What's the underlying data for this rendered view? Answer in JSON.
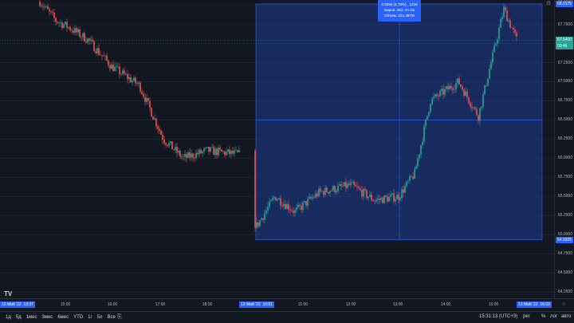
{
  "price_axis": {
    "ticks": [
      "68.0000",
      "67.7500",
      "67.5000",
      "67.2500",
      "67.0000",
      "66.7500",
      "66.5000",
      "66.2500",
      "66.0000",
      "65.7500",
      "65.5000",
      "65.2500",
      "65.0000",
      "64.7500",
      "64.5000",
      "64.2500"
    ],
    "top_label": "68.1503",
    "high_tag": "68.0175",
    "last_tag_price": "67.5400",
    "last_tag_time": "00:46",
    "low_tag": "64.9325"
  },
  "time_axis": {
    "ticks": [
      "15:00",
      "16:00",
      "17:00",
      "18:00",
      "11:00",
      "12:00",
      "13:00",
      "14:00",
      "15:00"
    ],
    "start_label": "12 Май '22",
    "start_time": "13:37",
    "range_start_label": "13 Май '22",
    "range_start_time": "10:01",
    "range_end_label": "13 Май '22",
    "range_end_time": "16:03"
  },
  "tooltip": {
    "line1": "3.0850 (4.75%) , 1234",
    "line2": "Баров: 362, 6ч 2м",
    "line3": "Объём: 231.487M"
  },
  "bottom_bar": {
    "ranges": [
      "1д",
      "5д",
      "1мес",
      "3мес",
      "6мес",
      "YTD",
      "1г",
      "5л",
      "Все"
    ],
    "clock": "15:31:13 (UTC+3)",
    "pct": "%",
    "log": "лог",
    "auto": "авто",
    "adj": "рег"
  },
  "logo": "TV",
  "colors": {
    "background": "#131722",
    "up": "#26a69a",
    "down": "#ef5350",
    "selection": "#2962ff",
    "axis_text": "#b2b5be"
  },
  "chart_data": {
    "type": "line",
    "x": [
      "12 Май 13:37",
      "14:30",
      "15:00",
      "15:30",
      "16:00",
      "16:30",
      "17:00",
      "17:30",
      "18:00",
      "18:30",
      "13 Май 10:01",
      "10:30",
      "11:00",
      "11:30",
      "12:00",
      "12:30",
      "13:00",
      "13:30",
      "14:00",
      "14:30",
      "15:00",
      "15:20",
      "15:31"
    ],
    "series": [
      {
        "values": [
          68.05,
          67.8,
          67.72,
          67.55,
          67.2,
          66.95,
          66.25,
          66.0,
          66.1,
          66.05,
          65.1,
          65.5,
          65.3,
          65.55,
          65.65,
          65.45,
          65.5,
          65.8,
          66.75,
          67.0,
          66.55,
          67.95,
          67.55
        ]
      }
    ],
    "ylim": [
      64.2,
      68.1
    ],
    "grid": true,
    "selection": {
      "from": "13 Май 10:01",
      "to": "13 Май 16:03",
      "change": "3.0850 (4.75%)"
    }
  }
}
